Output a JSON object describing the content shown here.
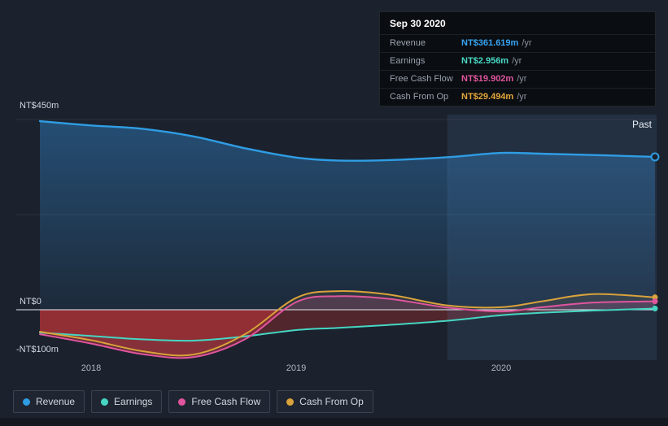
{
  "tooltip": {
    "date": "Sep 30 2020",
    "rows": [
      {
        "label": "Revenue",
        "value": "NT$361.619m",
        "unit": "/yr",
        "color": "#38a5f5"
      },
      {
        "label": "Earnings",
        "value": "NT$2.956m",
        "unit": "/yr",
        "color": "#48d8c5"
      },
      {
        "label": "Free Cash Flow",
        "value": "NT$19.902m",
        "unit": "/yr",
        "color": "#e0569f"
      },
      {
        "label": "Cash From Op",
        "value": "NT$29.494m",
        "unit": "/yr",
        "color": "#e5a63c"
      }
    ]
  },
  "axis": {
    "y_top_label": "NT$450m",
    "y_zero_label": "NT$0",
    "y_bottom_label": "-NT$100m",
    "x_ticks": [
      "2018",
      "2019",
      "2020"
    ]
  },
  "past_label": "Past",
  "legend": [
    {
      "label": "Revenue",
      "color": "#2f9de4"
    },
    {
      "label": "Earnings",
      "color": "#45d6c3"
    },
    {
      "label": "Free Cash Flow",
      "color": "#e0559e"
    },
    {
      "label": "Cash From Op",
      "color": "#d9a23b"
    }
  ],
  "chart_data": {
    "type": "line",
    "title": "Past financial performance (NT$m per year)",
    "x": [
      2017.75,
      2018.0,
      2018.25,
      2018.5,
      2018.75,
      2019.0,
      2019.2,
      2019.45,
      2019.74,
      2020.0,
      2020.2,
      2020.45,
      2020.75
    ],
    "x_tick_values": [
      2018,
      2019,
      2020
    ],
    "ylim": [
      -100,
      450
    ],
    "y_gridlines": [
      450,
      225
    ],
    "zero_line": 0,
    "y_unit": "NT$m",
    "highlight": {
      "from": 2019.74,
      "to": 2020.78,
      "label": "Past"
    },
    "series": [
      {
        "name": "Revenue",
        "color": "#2f9de4",
        "fill": "gradient",
        "neg_red": false,
        "end_marker": "open",
        "values": [
          446,
          436,
          428,
          410,
          382,
          360,
          353,
          354,
          361,
          371,
          369,
          366,
          361.619
        ]
      },
      {
        "name": "Cash From Op",
        "color": "#d9a23b",
        "fill": "rgba(217,162,59,0.10)",
        "neg_red": true,
        "end_marker": "dot",
        "values": [
          -52,
          -72,
          -98,
          -106,
          -58,
          28,
          44,
          36,
          10,
          6,
          20,
          37,
          29.494
        ]
      },
      {
        "name": "Free Cash Flow",
        "color": "#e0559e",
        "fill": "rgba(224,85,158,0.18)",
        "neg_red": true,
        "end_marker": "dot",
        "values": [
          -58,
          -80,
          -105,
          -112,
          -70,
          18,
          32,
          26,
          5,
          -4,
          6,
          17,
          19.902
        ]
      },
      {
        "name": "Earnings",
        "color": "#45d6c3",
        "fill": "none",
        "neg_red": true,
        "end_marker": "dot",
        "values": [
          -54,
          -62,
          -70,
          -73,
          -63,
          -48,
          -43,
          -36,
          -26,
          -13,
          -7,
          -2,
          2.956
        ]
      }
    ]
  }
}
